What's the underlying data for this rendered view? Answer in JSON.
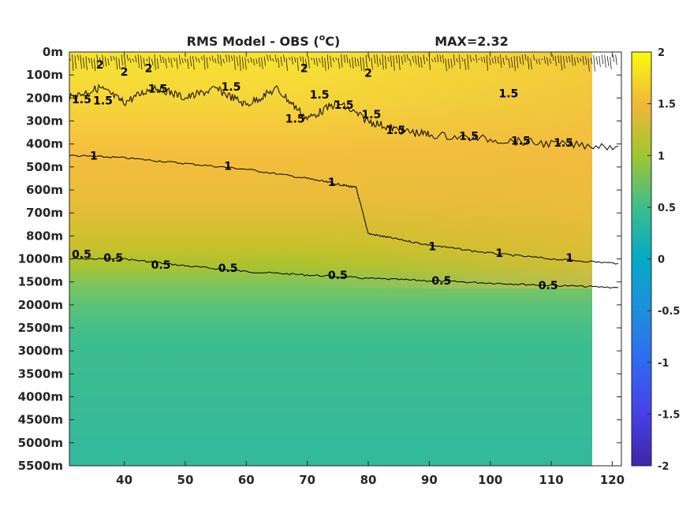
{
  "chart_data": {
    "type": "heatmap",
    "title": "RMS Model - OBS (°C)",
    "title_parts": {
      "base": "RMS Model - OBS (",
      "sup": "o",
      "unit": "C)"
    },
    "annotation": "MAX=2.32",
    "x": {
      "ticks": [
        40,
        50,
        60,
        70,
        80,
        90,
        100,
        110,
        120
      ],
      "range": [
        31,
        121.5
      ]
    },
    "y": {
      "labels": [
        "0m",
        "100m",
        "200m",
        "300m",
        "400m",
        "500m",
        "600m",
        "700m",
        "800m",
        "1000m",
        "1500m",
        "2000m",
        "2500m",
        "3000m",
        "3500m",
        "4000m",
        "4500m",
        "5000m",
        "5500m"
      ],
      "depths": [
        0,
        100,
        200,
        300,
        400,
        500,
        600,
        700,
        800,
        1000,
        1500,
        2000,
        2500,
        3000,
        3500,
        4000,
        4500,
        5000,
        5500
      ]
    },
    "colorbar": {
      "ticks": [
        "2",
        "1.5",
        "1",
        "0.5",
        "0",
        "-0.5",
        "-1",
        "-1.5",
        "-2"
      ],
      "range": [
        -2,
        2
      ],
      "colormap": "parula"
    },
    "contours": [
      {
        "level": "0.5",
        "x": [
          31,
          40,
          50,
          60,
          70,
          80,
          90,
          100,
          110,
          121
        ],
        "y": [
          9.0,
          9.0,
          9.3,
          9.55,
          9.7,
          9.85,
          9.95,
          10.05,
          10.15,
          10.25
        ]
      },
      {
        "level": "1",
        "x": [
          31,
          40,
          50,
          60,
          70,
          75,
          78,
          80,
          84,
          90,
          100,
          110,
          121
        ],
        "y": [
          4.5,
          4.6,
          4.85,
          5.1,
          5.5,
          5.75,
          5.9,
          7.9,
          8.1,
          8.4,
          8.75,
          9.0,
          9.2
        ]
      },
      {
        "level": "1.5",
        "x": [
          31,
          36,
          40,
          45,
          50,
          55,
          60,
          65,
          70,
          75,
          80,
          85,
          90,
          100,
          110,
          121
        ],
        "y": [
          2.0,
          1.55,
          2.2,
          1.5,
          2.0,
          1.6,
          2.3,
          1.6,
          2.9,
          2.2,
          3.0,
          3.4,
          3.6,
          3.8,
          4.0,
          4.1
        ]
      }
    ],
    "contour_labels": [
      {
        "text": "0.5",
        "x": 33.0,
        "y": 8.8
      },
      {
        "text": "0.5",
        "x": 38.2,
        "y": 8.95
      },
      {
        "text": "0.5",
        "x": 46.0,
        "y": 9.25
      },
      {
        "text": "0.5",
        "x": 57.0,
        "y": 9.4
      },
      {
        "text": "0.5",
        "x": 75.0,
        "y": 9.7
      },
      {
        "text": "0.5",
        "x": 92.0,
        "y": 9.95
      },
      {
        "text": "0.5",
        "x": 109.5,
        "y": 10.15
      },
      {
        "text": "1",
        "x": 35.0,
        "y": 4.5
      },
      {
        "text": "1",
        "x": 57.0,
        "y": 4.95
      },
      {
        "text": "1",
        "x": 74.0,
        "y": 5.65
      },
      {
        "text": "1",
        "x": 90.5,
        "y": 8.45
      },
      {
        "text": "1",
        "x": 101.5,
        "y": 8.75
      },
      {
        "text": "1",
        "x": 113.0,
        "y": 8.95
      },
      {
        "text": "1.5",
        "x": 33.0,
        "y": 2.05
      },
      {
        "text": "1.5",
        "x": 36.5,
        "y": 2.1
      },
      {
        "text": "1.5",
        "x": 45.5,
        "y": 1.6
      },
      {
        "text": "1.5",
        "x": 57.5,
        "y": 1.5
      },
      {
        "text": "1.5",
        "x": 68.0,
        "y": 2.9
      },
      {
        "text": "1.5",
        "x": 72.0,
        "y": 1.85
      },
      {
        "text": "1.5",
        "x": 76.0,
        "y": 2.3
      },
      {
        "text": "1.5",
        "x": 80.5,
        "y": 2.7
      },
      {
        "text": "1.5",
        "x": 84.5,
        "y": 3.4
      },
      {
        "text": "1.5",
        "x": 96.5,
        "y": 3.65
      },
      {
        "text": "1.5",
        "x": 103.0,
        "y": 1.8
      },
      {
        "text": "1.5",
        "x": 105.0,
        "y": 3.85
      },
      {
        "text": "1.5",
        "x": 112.0,
        "y": 3.95
      },
      {
        "text": "2",
        "x": 36.0,
        "y": 0.55
      },
      {
        "text": "2",
        "x": 40.0,
        "y": 0.85
      },
      {
        "text": "2",
        "x": 44.0,
        "y": 0.7
      },
      {
        "text": "2",
        "x": 69.5,
        "y": 0.7
      },
      {
        "text": "2",
        "x": 80.0,
        "y": 0.9
      }
    ]
  }
}
